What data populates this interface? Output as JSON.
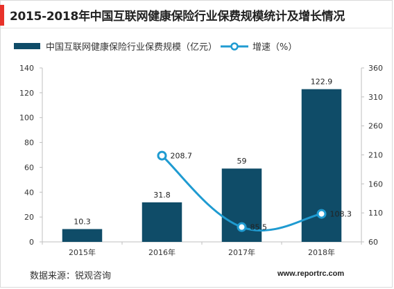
{
  "title": "2015-2018年中国互联网健康保险行业保费规模统计及增长情况",
  "source": "数据来源：锐观咨询",
  "website": "www.reportrc.com",
  "colors": {
    "accent": "#e8322a",
    "bar": "#0f4c68",
    "line": "#1f9bd1",
    "marker_fill": "#ffffff"
  },
  "chart_data": {
    "type": "bar",
    "categories": [
      "2015年",
      "2016年",
      "2017年",
      "2018年"
    ],
    "series": [
      {
        "name": "中国互联网健康保险行业保费规模（亿元）",
        "type": "bar",
        "axis": "left",
        "values": [
          10.3,
          31.8,
          59,
          122.9
        ],
        "labels": [
          "10.3",
          "31.8",
          "59",
          "122.9"
        ]
      },
      {
        "name": "增速（%）",
        "type": "line",
        "axis": "right",
        "values": [
          null,
          208.7,
          85.5,
          108.3
        ],
        "labels": [
          "",
          "208.7",
          "85.5",
          "108.3"
        ]
      }
    ],
    "y_left": {
      "lim": [
        0,
        140
      ],
      "ticks": [
        "0",
        "20",
        "40",
        "60",
        "80",
        "100",
        "120",
        "140"
      ]
    },
    "y_right": {
      "lim": [
        60,
        360
      ],
      "ticks": [
        "60",
        "110",
        "160",
        "210",
        "260",
        "310",
        "360"
      ]
    },
    "legend": "top",
    "grid": false
  }
}
